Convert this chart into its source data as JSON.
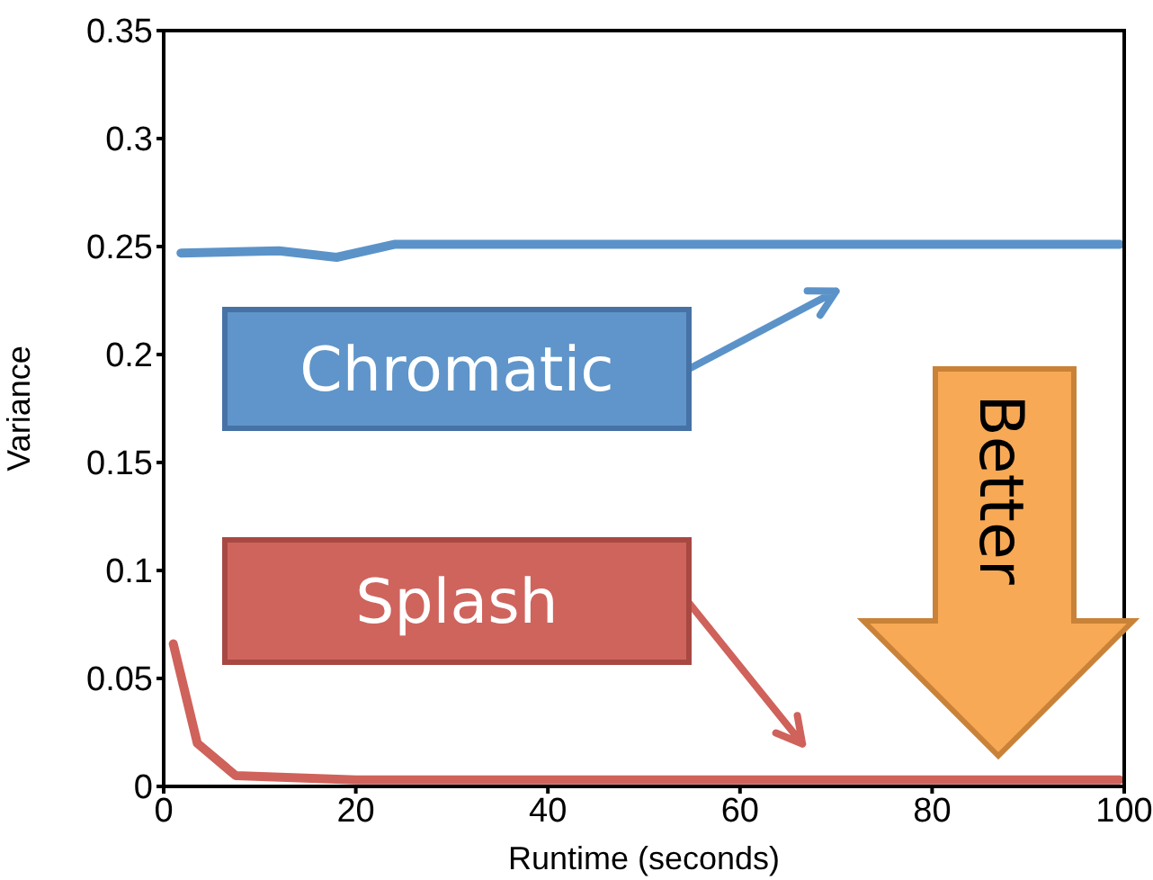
{
  "chart_data": {
    "type": "line",
    "xlabel": "Runtime (seconds)",
    "ylabel": "Variance",
    "xlim": [
      0,
      100
    ],
    "xticks": [
      0,
      20,
      40,
      60,
      80,
      100
    ],
    "ylim": [
      0,
      0.35
    ],
    "yticks": [
      0,
      0.05,
      0.1,
      0.15,
      0.2,
      0.25,
      0.3,
      0.35
    ],
    "grid": false,
    "legend": "left",
    "marker": "none",
    "line_style": "solid",
    "series": [
      {
        "name": "Chromatic",
        "color": "#5b93c9",
        "x": [
          1.8,
          12,
          18,
          24,
          99.5
        ],
        "values": [
          0.247,
          0.248,
          0.245,
          0.251,
          0.251
        ]
      },
      {
        "name": "Splash",
        "color": "#cf625b",
        "x": [
          1,
          3.5,
          7.5,
          20,
          99.5
        ],
        "values": [
          0.066,
          0.02,
          0.005,
          0.003,
          0.003
        ]
      }
    ],
    "annotations": [
      "Better"
    ]
  }
}
